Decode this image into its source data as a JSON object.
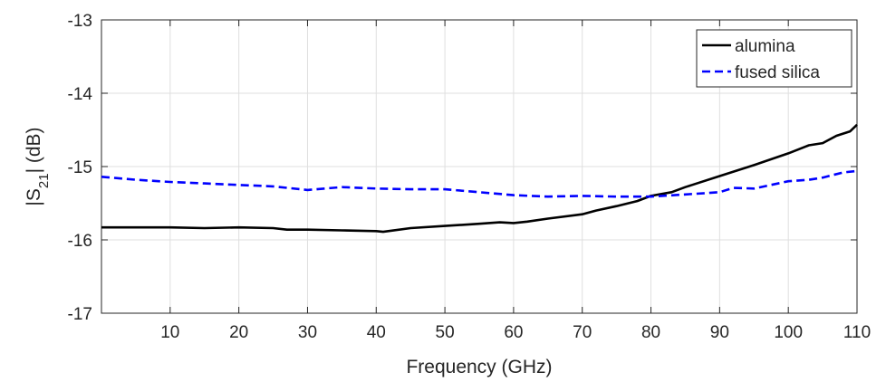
{
  "chart_data": {
    "type": "line",
    "title": "",
    "xlabel": "Frequency (GHz)",
    "ylabel_main": "|S",
    "ylabel_sub": "21",
    "ylabel_tail": "| (dB)",
    "xlim": [
      0,
      110
    ],
    "ylim": [
      -17,
      -13
    ],
    "x_ticks": [
      10,
      20,
      30,
      40,
      50,
      60,
      70,
      80,
      90,
      100,
      110
    ],
    "y_ticks": [
      -17,
      -16,
      -15,
      -14,
      -13
    ],
    "grid": true,
    "legend_position": "top-right",
    "series": [
      {
        "name": "alumina",
        "color": "#000000",
        "dash": "solid",
        "x": [
          0,
          5,
          10,
          15,
          20,
          25,
          27,
          30,
          35,
          40,
          41,
          45,
          50,
          55,
          58,
          60,
          62,
          65,
          70,
          72,
          75,
          78,
          80,
          83,
          85,
          90,
          95,
          100,
          103,
          105,
          107,
          109,
          110
        ],
        "y": [
          -15.83,
          -15.83,
          -15.83,
          -15.84,
          -15.83,
          -15.84,
          -15.86,
          -15.86,
          -15.87,
          -15.88,
          -15.89,
          -15.84,
          -15.81,
          -15.78,
          -15.76,
          -15.77,
          -15.75,
          -15.71,
          -15.65,
          -15.6,
          -15.54,
          -15.47,
          -15.4,
          -15.35,
          -15.28,
          -15.13,
          -14.98,
          -14.82,
          -14.71,
          -14.68,
          -14.58,
          -14.52,
          -14.43
        ]
      },
      {
        "name": "fused silica",
        "color": "#0000ff",
        "dash": "dashed",
        "x": [
          0,
          5,
          10,
          15,
          20,
          25,
          30,
          35,
          40,
          45,
          50,
          55,
          60,
          65,
          70,
          75,
          80,
          85,
          90,
          92,
          95,
          100,
          103,
          105,
          108,
          110
        ],
        "y": [
          -15.14,
          -15.18,
          -15.21,
          -15.23,
          -15.25,
          -15.27,
          -15.32,
          -15.28,
          -15.3,
          -15.31,
          -15.31,
          -15.35,
          -15.39,
          -15.41,
          -15.4,
          -15.41,
          -15.41,
          -15.38,
          -15.35,
          -15.29,
          -15.3,
          -15.2,
          -15.18,
          -15.15,
          -15.08,
          -15.06
        ]
      }
    ]
  }
}
